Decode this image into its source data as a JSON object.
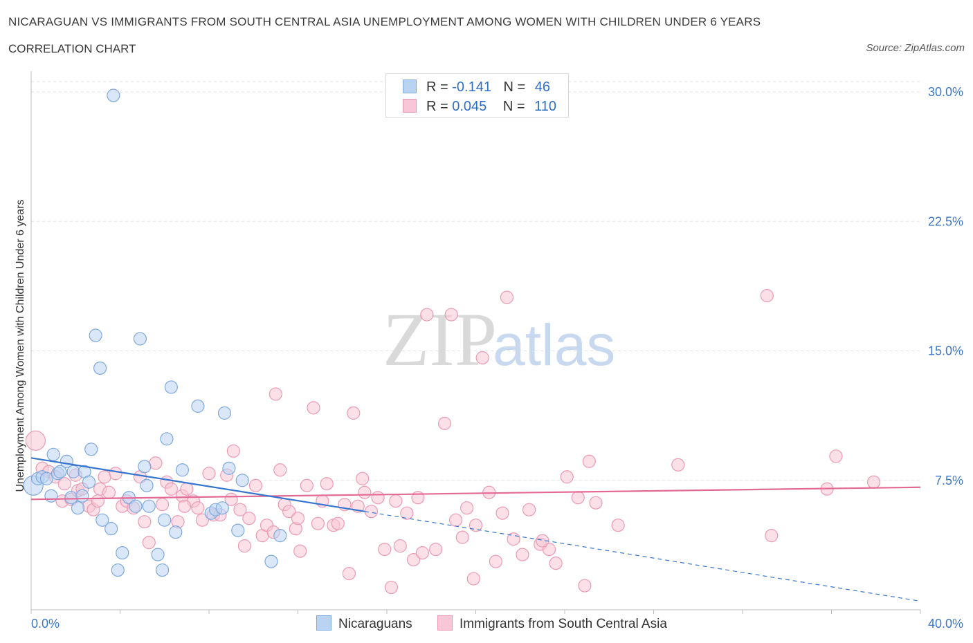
{
  "title": "NICARAGUAN VS IMMIGRANTS FROM SOUTH CENTRAL ASIA UNEMPLOYMENT AMONG WOMEN WITH CHILDREN UNDER 6 YEARS",
  "subtitle": "CORRELATION CHART",
  "source": "Source: ZipAtlas.com",
  "watermark": {
    "zip": "ZIP",
    "atlas": "atlas"
  },
  "legend_top": [
    {
      "r_label": "R =",
      "r_value": "-0.141",
      "n_label": "N =",
      "n_value": "46"
    },
    {
      "r_label": "R =",
      "r_value": "0.045",
      "n_label": "N =",
      "n_value": "110"
    }
  ],
  "legend_bottom": [
    "Nicaraguans",
    "Immigrants from South Central Asia"
  ],
  "colors": {
    "blue_fill": "#b9d3f3",
    "blue_stroke": "#7ea9dd",
    "blue_line": "#3575cf",
    "pink_fill": "#f8c6d6",
    "pink_stroke": "#eb9ab3",
    "pink_line": "#e46a96",
    "tick_text": "#3b78c8",
    "grid": "#e2e2e2"
  },
  "chart_data": {
    "type": "scatter",
    "title": "NICARAGUAN VS IMMIGRANTS FROM SOUTH CENTRAL ASIA UNEMPLOYMENT AMONG WOMEN WITH CHILDREN UNDER 6 YEARS",
    "xlabel": "",
    "ylabel": "Unemployment Among Women with Children Under 6 years",
    "xlim": [
      0,
      40
    ],
    "ylim": [
      0,
      30
    ],
    "x_tick_labels": [
      {
        "value": 0,
        "label": "0.0%"
      },
      {
        "value": 40,
        "label": "40.0%"
      }
    ],
    "y_tick_labels": [
      {
        "value": 7.5,
        "label": "7.5%"
      },
      {
        "value": 15,
        "label": "15.0%"
      },
      {
        "value": 22.5,
        "label": "22.5%"
      },
      {
        "value": 30,
        "label": "30.0%"
      }
    ],
    "grid": true,
    "legend_position": "bottom",
    "series": [
      {
        "name": "Nicaraguans",
        "r": -0.141,
        "n": 46,
        "trend": {
          "x1": 0,
          "y1": 8.8,
          "x2": 15,
          "y2": 5.7,
          "dash_to_x": 40,
          "dash_to_y": 0.5
        },
        "points": [
          [
            0.1,
            7.2
          ],
          [
            0.3,
            7.6
          ],
          [
            0.5,
            7.7
          ],
          [
            0.7,
            7.6
          ],
          [
            0.9,
            6.6
          ],
          [
            1.0,
            9.0
          ],
          [
            1.2,
            7.9
          ],
          [
            1.3,
            8.0
          ],
          [
            1.6,
            8.6
          ],
          [
            1.8,
            6.5
          ],
          [
            1.9,
            8.0
          ],
          [
            2.1,
            5.9
          ],
          [
            2.3,
            6.6
          ],
          [
            2.4,
            8.0
          ],
          [
            2.6,
            7.4
          ],
          [
            2.7,
            9.3
          ],
          [
            2.9,
            15.9
          ],
          [
            3.1,
            14.0
          ],
          [
            3.2,
            5.2
          ],
          [
            3.6,
            4.7
          ],
          [
            3.7,
            29.8
          ],
          [
            3.9,
            2.3
          ],
          [
            4.1,
            3.3
          ],
          [
            4.4,
            6.5
          ],
          [
            4.7,
            6.0
          ],
          [
            4.9,
            15.7
          ],
          [
            5.1,
            8.3
          ],
          [
            5.3,
            6.0
          ],
          [
            5.7,
            3.2
          ],
          [
            5.9,
            2.3
          ],
          [
            6.0,
            5.2
          ],
          [
            6.1,
            9.9
          ],
          [
            6.3,
            12.9
          ],
          [
            6.5,
            4.5
          ],
          [
            6.8,
            8.1
          ],
          [
            7.5,
            11.8
          ],
          [
            8.1,
            5.6
          ],
          [
            8.3,
            5.8
          ],
          [
            8.7,
            11.4
          ],
          [
            8.9,
            8.2
          ],
          [
            9.3,
            4.6
          ],
          [
            9.5,
            7.5
          ],
          [
            10.8,
            2.8
          ],
          [
            11.2,
            4.3
          ],
          [
            8.6,
            5.9
          ],
          [
            5.2,
            7.2
          ]
        ]
      },
      {
        "name": "Immigrants from South Central Asia",
        "r": 0.045,
        "n": 110,
        "trend": {
          "x1": 0,
          "y1": 6.4,
          "x2": 40,
          "y2": 7.1
        },
        "points": [
          [
            0.2,
            9.8
          ],
          [
            0.5,
            8.2
          ],
          [
            0.8,
            8.0
          ],
          [
            1.1,
            7.7
          ],
          [
            1.4,
            6.3
          ],
          [
            1.5,
            7.3
          ],
          [
            1.8,
            6.4
          ],
          [
            2.1,
            6.9
          ],
          [
            2.3,
            7.0
          ],
          [
            2.6,
            6.0
          ],
          [
            2.8,
            5.8
          ],
          [
            3.1,
            7.0
          ],
          [
            3.3,
            7.7
          ],
          [
            3.5,
            6.8
          ],
          [
            3.8,
            7.9
          ],
          [
            4.1,
            6.0
          ],
          [
            4.3,
            6.3
          ],
          [
            4.6,
            5.9
          ],
          [
            4.9,
            7.7
          ],
          [
            5.1,
            5.1
          ],
          [
            5.3,
            3.9
          ],
          [
            5.6,
            8.5
          ],
          [
            5.9,
            6.1
          ],
          [
            6.1,
            7.4
          ],
          [
            6.3,
            7.0
          ],
          [
            6.6,
            5.1
          ],
          [
            6.8,
            6.6
          ],
          [
            7.0,
            7.0
          ],
          [
            7.3,
            6.3
          ],
          [
            7.5,
            5.9
          ],
          [
            7.7,
            5.2
          ],
          [
            8.0,
            7.9
          ],
          [
            8.2,
            5.5
          ],
          [
            8.5,
            5.5
          ],
          [
            8.8,
            7.8
          ],
          [
            9.1,
            9.2
          ],
          [
            9.4,
            5.8
          ],
          [
            9.6,
            3.7
          ],
          [
            9.8,
            5.3
          ],
          [
            10.1,
            7.2
          ],
          [
            10.4,
            4.3
          ],
          [
            10.6,
            4.9
          ],
          [
            10.9,
            4.5
          ],
          [
            11.0,
            12.5
          ],
          [
            11.2,
            8.1
          ],
          [
            11.4,
            6.1
          ],
          [
            11.6,
            5.7
          ],
          [
            11.9,
            4.7
          ],
          [
            12.1,
            3.4
          ],
          [
            12.4,
            7.2
          ],
          [
            12.7,
            11.7
          ],
          [
            12.9,
            5.0
          ],
          [
            13.1,
            6.3
          ],
          [
            13.3,
            7.3
          ],
          [
            13.6,
            4.9
          ],
          [
            13.8,
            5.0
          ],
          [
            14.1,
            6.1
          ],
          [
            14.3,
            2.1
          ],
          [
            14.5,
            11.4
          ],
          [
            14.7,
            6.0
          ],
          [
            14.9,
            7.6
          ],
          [
            15.3,
            5.7
          ],
          [
            15.6,
            6.5
          ],
          [
            15.9,
            3.5
          ],
          [
            16.2,
            1.3
          ],
          [
            16.4,
            6.3
          ],
          [
            16.6,
            3.7
          ],
          [
            16.9,
            5.6
          ],
          [
            17.2,
            2.9
          ],
          [
            17.4,
            6.5
          ],
          [
            17.6,
            3.3
          ],
          [
            17.8,
            17.1
          ],
          [
            18.2,
            3.5
          ],
          [
            18.6,
            10.8
          ],
          [
            18.9,
            17.1
          ],
          [
            19.1,
            5.2
          ],
          [
            19.4,
            4.2
          ],
          [
            19.6,
            5.9
          ],
          [
            19.9,
            1.8
          ],
          [
            20.3,
            14.6
          ],
          [
            20.6,
            6.8
          ],
          [
            20.9,
            2.8
          ],
          [
            21.2,
            5.6
          ],
          [
            21.4,
            18.1
          ],
          [
            21.7,
            4.1
          ],
          [
            22.1,
            3.2
          ],
          [
            22.4,
            5.8
          ],
          [
            22.9,
            3.8
          ],
          [
            23.3,
            3.5
          ],
          [
            23.6,
            2.7
          ],
          [
            24.1,
            7.7
          ],
          [
            24.6,
            6.5
          ],
          [
            24.9,
            1.4
          ],
          [
            25.1,
            8.6
          ],
          [
            25.4,
            6.2
          ],
          [
            26.4,
            4.9
          ],
          [
            29.1,
            8.4
          ],
          [
            33.1,
            18.2
          ],
          [
            33.3,
            4.3
          ],
          [
            35.8,
            7.0
          ],
          [
            36.2,
            8.9
          ],
          [
            37.9,
            7.4
          ],
          [
            2.0,
            7.8
          ],
          [
            3.0,
            6.3
          ],
          [
            6.9,
            6.0
          ],
          [
            9.0,
            6.4
          ],
          [
            12.0,
            5.3
          ],
          [
            15.0,
            6.8
          ],
          [
            20.0,
            4.9
          ],
          [
            23.0,
            4.0
          ]
        ]
      }
    ]
  }
}
